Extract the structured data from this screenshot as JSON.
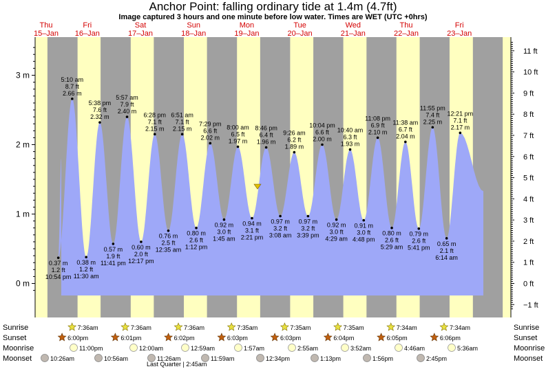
{
  "title": "Anchor Point: falling  ordinary tide at 1.4m (4.7ft)",
  "subtitle": "Image captured 3 hours and one minute before low water. Times are WET (UTC +0hrs)",
  "colors": {
    "day_band": "#ffffc0",
    "night_band": "#a0a0a0",
    "tide_fill": "#9ea8f8",
    "day_text": "#d40000"
  },
  "rows": {
    "sunrise": "Sunrise",
    "sunset": "Sunset",
    "moonrise": "Moonrise",
    "moonset": "Moonset"
  },
  "days": [
    {
      "dow": "Thu",
      "date": "15–Jan"
    },
    {
      "dow": "Fri",
      "date": "16–Jan"
    },
    {
      "dow": "Sat",
      "date": "17–Jan"
    },
    {
      "dow": "Sun",
      "date": "18–Jan"
    },
    {
      "dow": "Mon",
      "date": "19–Jan"
    },
    {
      "dow": "Tue",
      "date": "20–Jan"
    },
    {
      "dow": "Wed",
      "date": "21–Jan"
    },
    {
      "dow": "Thu",
      "date": "22–Jan"
    },
    {
      "dow": "Fri",
      "date": "23–Jan"
    }
  ],
  "sunrise": [
    "7:36am",
    "7:36am",
    "7:36am",
    "7:35am",
    "7:35am",
    "7:35am",
    "7:34am",
    "7:34am"
  ],
  "sunset": [
    "6:00pm",
    "6:01pm",
    "6:02pm",
    "6:03pm",
    "6:03pm",
    "6:04pm",
    "6:05pm",
    "6:06pm"
  ],
  "moonrise": [
    "11:00pm",
    "12:00am",
    "12:59am",
    "1:57am",
    "2:55am",
    "3:52am",
    "4:46am",
    "5:36am"
  ],
  "moonset": [
    "10:26am",
    "10:56am",
    "11:26am",
    "11:59am",
    "12:34pm",
    "1:13pm",
    "1:56pm",
    "2:45pm"
  ],
  "moon_phase": "Last Quarter | 2:45am",
  "chart_data": {
    "type": "area",
    "title": "Anchor Point: falling  ordinary tide at 1.4m (4.7ft)",
    "y_left_unit": "m",
    "y_right_unit": "ft",
    "y_left_ticks": [
      "0 m",
      "1 m",
      "2 m",
      "3 m"
    ],
    "y_right_ticks": [
      "−1 ft",
      "0 ft",
      "1 ft",
      "2 ft",
      "3 ft",
      "4 ft",
      "5 ft",
      "6 ft",
      "7 ft",
      "8 ft",
      "9 ft",
      "10 ft",
      "11 ft"
    ],
    "current_level_m": 1.4,
    "extremes": [
      {
        "type": "low",
        "time": "10:54 pm",
        "m": "0.37 m",
        "ft": "1.2 ft",
        "day": 0
      },
      {
        "type": "high",
        "time": "5:10 am",
        "m": "2.66 m",
        "ft": "8.7 ft",
        "day": 1
      },
      {
        "type": "low",
        "time": "11:30 am",
        "m": "0.38 m",
        "ft": "1.2 ft",
        "day": 1
      },
      {
        "type": "high",
        "time": "5:38 pm",
        "m": "2.32 m",
        "ft": "7.6 ft",
        "day": 1
      },
      {
        "type": "low",
        "time": "11:41 pm",
        "m": "0.57 m",
        "ft": "1.9 ft",
        "day": 1
      },
      {
        "type": "high",
        "time": "5:57 am",
        "m": "2.40 m",
        "ft": "7.9 ft",
        "day": 2
      },
      {
        "type": "low",
        "time": "12:17 pm",
        "m": "0.60 m",
        "ft": "2.0 ft",
        "day": 2
      },
      {
        "type": "high",
        "time": "6:28 pm",
        "m": "2.15 m",
        "ft": "7.1 ft",
        "day": 2
      },
      {
        "type": "low",
        "time": "12:35 am",
        "m": "0.76 m",
        "ft": "2.5 ft",
        "day": 3
      },
      {
        "type": "high",
        "time": "6:51 am",
        "m": "2.15 m",
        "ft": "7.1 ft",
        "day": 3
      },
      {
        "type": "low",
        "time": "1:12 pm",
        "m": "0.80 m",
        "ft": "2.6 ft",
        "day": 3
      },
      {
        "type": "high",
        "time": "7:29 pm",
        "m": "2.02 m",
        "ft": "6.6 ft",
        "day": 3
      },
      {
        "type": "low",
        "time": "1:45 am",
        "m": "0.92 m",
        "ft": "3.0 ft",
        "day": 4
      },
      {
        "type": "high",
        "time": "8:00 am",
        "m": "1.97 m",
        "ft": "6.5 ft",
        "day": 4
      },
      {
        "type": "low",
        "time": "2:21 pm",
        "m": "0.94 m",
        "ft": "3.1 ft",
        "day": 4
      },
      {
        "type": "high",
        "time": "8:46 pm",
        "m": "1.96 m",
        "ft": "6.4 ft",
        "day": 4
      },
      {
        "type": "low",
        "time": "3:08 am",
        "m": "0.97 m",
        "ft": "3.2 ft",
        "day": 5
      },
      {
        "type": "high",
        "time": "9:26 am",
        "m": "1.89 m",
        "ft": "6.2 ft",
        "day": 5
      },
      {
        "type": "low",
        "time": "3:39 pm",
        "m": "0.97 m",
        "ft": "3.2 ft",
        "day": 5
      },
      {
        "type": "high",
        "time": "10:04 pm",
        "m": "2.00 m",
        "ft": "6.6 ft",
        "day": 5
      },
      {
        "type": "low",
        "time": "4:29 am",
        "m": "0.92 m",
        "ft": "3.0 ft",
        "day": 6
      },
      {
        "type": "high",
        "time": "10:40 am",
        "m": "1.93 m",
        "ft": "6.3 ft",
        "day": 6
      },
      {
        "type": "low",
        "time": "4:48 pm",
        "m": "0.91 m",
        "ft": "3.0 ft",
        "day": 6
      },
      {
        "type": "high",
        "time": "11:08 pm",
        "m": "2.10 m",
        "ft": "6.9 ft",
        "day": 6
      },
      {
        "type": "low",
        "time": "5:29 am",
        "m": "0.80 m",
        "ft": "2.6 ft",
        "day": 7
      },
      {
        "type": "high",
        "time": "11:38 am",
        "m": "2.04 m",
        "ft": "6.7 ft",
        "day": 7
      },
      {
        "type": "low",
        "time": "5:41 pm",
        "m": "0.79 m",
        "ft": "2.6 ft",
        "day": 7
      },
      {
        "type": "high",
        "time": "11:55 pm",
        "m": "2.25 m",
        "ft": "7.4 ft",
        "day": 7
      },
      {
        "type": "low",
        "time": "6:14 am",
        "m": "0.65 m",
        "ft": "2.1 ft",
        "day": 8
      },
      {
        "type": "high",
        "time": "12:21 pm",
        "m": "2.17 m",
        "ft": "7.1 ft",
        "day": 8
      }
    ]
  }
}
